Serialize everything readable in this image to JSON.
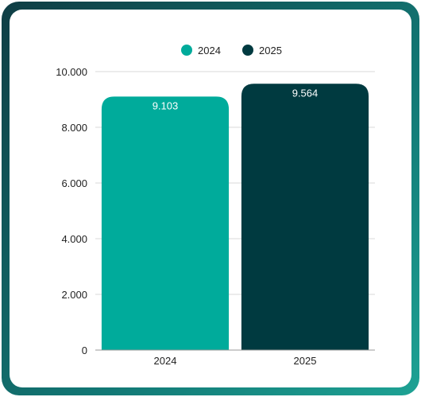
{
  "colors": {
    "series_2024": "#00ab9b",
    "series_2025": "#003a40",
    "frame_start": "#0f3d44",
    "frame_end": "#1ea294",
    "grid": "#d9d9d9",
    "axis": "#999999",
    "text": "#222222",
    "label_text": "#ffffff"
  },
  "chart_data": {
    "type": "bar",
    "categories": [
      "2024",
      "2025"
    ],
    "values": [
      9.103,
      9.564
    ],
    "value_labels": [
      "9.103",
      "9.564"
    ],
    "legend": [
      {
        "name": "2024",
        "color": "#00ab9b"
      },
      {
        "name": "2025",
        "color": "#003a40"
      }
    ],
    "legend_position": "top-center",
    "ylim": [
      0,
      10
    ],
    "y_ticks": [
      0,
      2,
      4,
      6,
      8,
      10
    ],
    "y_tick_labels": [
      "0",
      "2.000",
      "4.000",
      "6.000",
      "8.000",
      "10.000"
    ],
    "grid": true,
    "title": "",
    "xlabel": "",
    "ylabel": ""
  }
}
